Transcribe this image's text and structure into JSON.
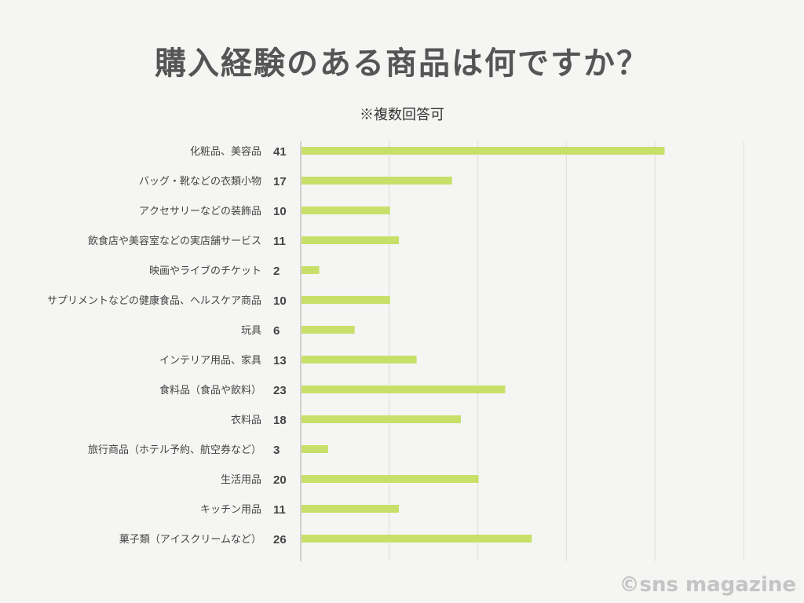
{
  "chart_data": {
    "type": "bar",
    "orientation": "horizontal",
    "title": "購入経験のある商品は何ですか？",
    "subtitle": "※複数回答可",
    "categories": [
      "化粧品、美容品",
      "バッグ・靴などの衣類小物",
      "アクセサリーなどの装飾品",
      "飲食店や美容室などの実店舗サービス",
      "映画やライブのチケット",
      "サプリメントなどの健康食品、ヘルスケア商品",
      "玩具",
      "インテリア用品、家具",
      "食料品（食品や飲料）",
      "衣料品",
      "旅行商品（ホテル予約、航空券など）",
      "生活用品",
      "キッチン用品",
      "菓子類（アイスクリームなど）"
    ],
    "values": [
      41,
      17,
      10,
      11,
      2,
      10,
      6,
      13,
      23,
      18,
      3,
      20,
      11,
      26
    ],
    "xlim": [
      0,
      50
    ],
    "grid": true,
    "bar_color": "#c8e06a"
  },
  "watermark": "©sns magazine"
}
